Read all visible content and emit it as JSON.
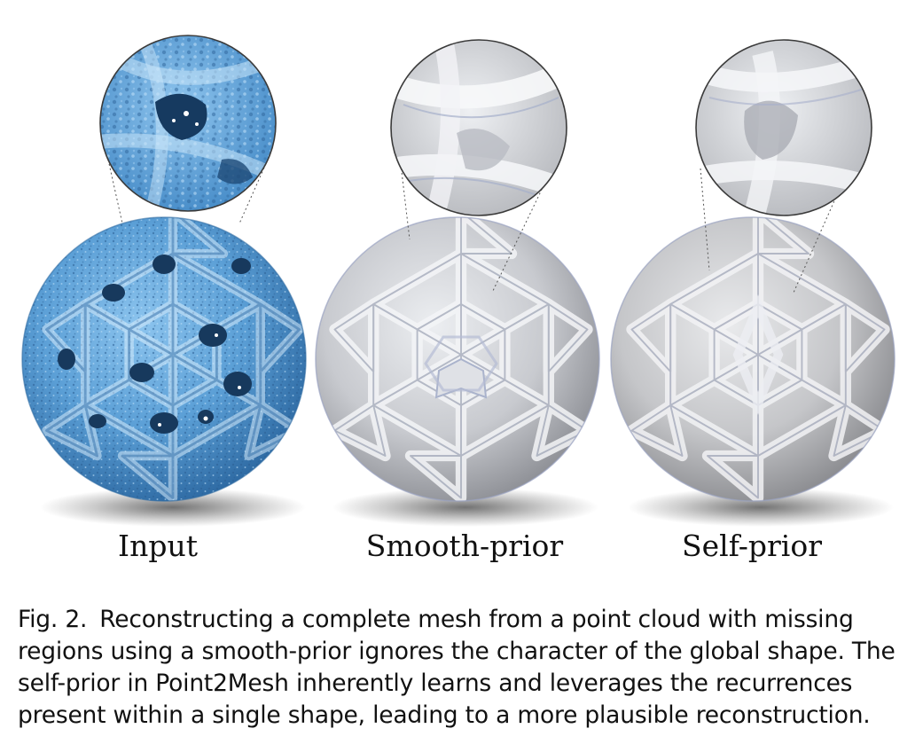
{
  "figure": {
    "panels": [
      {
        "id": "input",
        "label": "Input",
        "color": "#5ea3d9"
      },
      {
        "id": "smooth-prior",
        "label": "Smooth-prior",
        "color": "#c9cbcf"
      },
      {
        "id": "self-prior",
        "label": "Self-prior",
        "color": "#c6c7ca"
      }
    ],
    "caption": {
      "number": "Fig. 2.",
      "text": "Reconstructing a complete mesh from a point cloud with missing regions using a smooth-prior ignores the character of the global shape. The self-prior in Point2Mesh inherently learns and leverages the recurrences present within a single shape, leading to a more plausible reconstruction."
    }
  }
}
